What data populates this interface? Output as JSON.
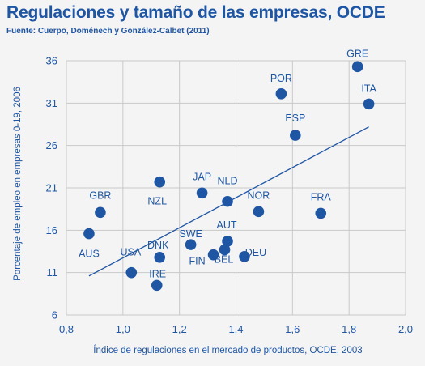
{
  "chart_data": {
    "type": "scatter",
    "title": "Regulaciones y tamaño de las empresas, OCDE",
    "subtitle": "Fuente: Cuerpo, Doménech y González-Calbet (2011)",
    "xlabel": "Índice de regulaciones en el mercado de productos, OCDE, 2003",
    "ylabel": "Porcentaje de empleo en empresas 0-19, 2006",
    "xlim": [
      0.8,
      2.0
    ],
    "ylim": [
      6,
      36
    ],
    "xticks": [
      0.8,
      1.0,
      1.2,
      1.4,
      1.6,
      1.8,
      2.0
    ],
    "xtick_labels": [
      "0,8",
      "1,0",
      "1,2",
      "1,4",
      "1,6",
      "1,8",
      "2,0"
    ],
    "yticks": [
      6,
      11,
      16,
      21,
      26,
      31,
      36
    ],
    "ytick_labels": [
      "6",
      "11",
      "16",
      "21",
      "26",
      "31",
      "36"
    ],
    "grid": true,
    "point_color": "#1f56a3",
    "points": [
      {
        "label": "GRE",
        "x": 1.83,
        "y": 35.3
      },
      {
        "label": "POR",
        "x": 1.56,
        "y": 32.1
      },
      {
        "label": "ITA",
        "x": 1.87,
        "y": 30.9
      },
      {
        "label": "ESP",
        "x": 1.61,
        "y": 27.2
      },
      {
        "label": "NZL",
        "x": 1.13,
        "y": 21.7
      },
      {
        "label": "JAP",
        "x": 1.28,
        "y": 20.4
      },
      {
        "label": "NLD",
        "x": 1.37,
        "y": 19.4
      },
      {
        "label": "NOR",
        "x": 1.48,
        "y": 18.2
      },
      {
        "label": "FRA",
        "x": 1.7,
        "y": 18.0
      },
      {
        "label": "GBR",
        "x": 0.92,
        "y": 18.1
      },
      {
        "label": "AUS",
        "x": 0.88,
        "y": 15.6
      },
      {
        "label": "AUT",
        "x": 1.37,
        "y": 14.7
      },
      {
        "label": "SWE",
        "x": 1.24,
        "y": 14.3
      },
      {
        "label": "DNK",
        "x": 1.13,
        "y": 12.8
      },
      {
        "label": "DEU",
        "x": 1.43,
        "y": 12.9
      },
      {
        "label": "FIN",
        "x": 1.32,
        "y": 13.1
      },
      {
        "label": "BEL",
        "x": 1.36,
        "y": 13.7
      },
      {
        "label": "USA",
        "x": 1.03,
        "y": 11.0
      },
      {
        "label": "IRE",
        "x": 1.12,
        "y": 9.5
      }
    ],
    "trendline": {
      "x": [
        0.88,
        1.87
      ],
      "y": [
        10.6,
        28.2
      ]
    }
  }
}
